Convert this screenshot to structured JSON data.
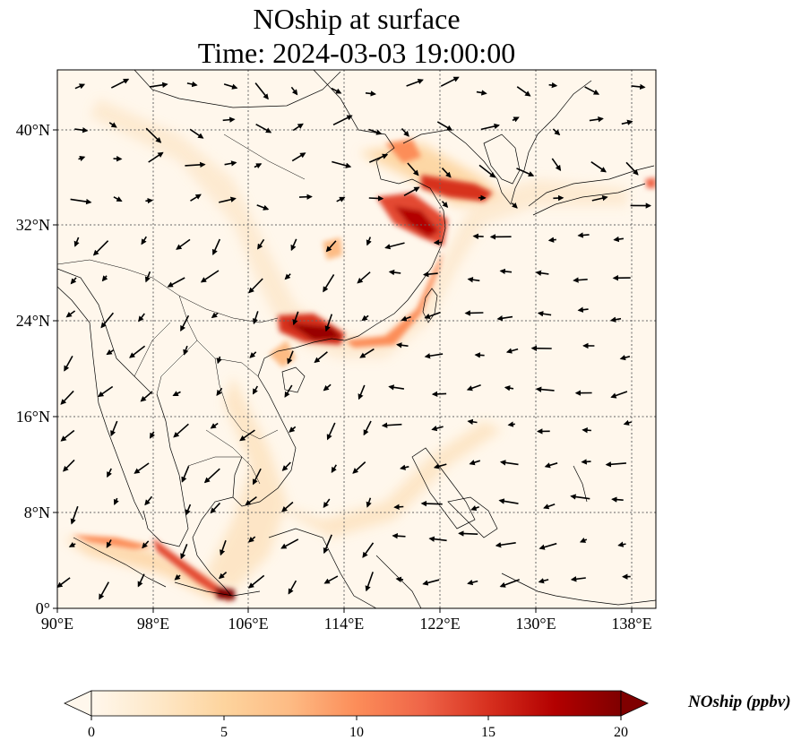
{
  "title": {
    "line1": "NOship at surface",
    "line2": "Time: 2024-03-03 19:00:00"
  },
  "map": {
    "projection": "PlateCarree",
    "lon_range": [
      90,
      140
    ],
    "lat_range": [
      0,
      45
    ],
    "lon_ticks": [
      {
        "value": 90,
        "label": "90°E"
      },
      {
        "value": 98,
        "label": "98°E"
      },
      {
        "value": 106,
        "label": "106°E"
      },
      {
        "value": 114,
        "label": "114°E"
      },
      {
        "value": 122,
        "label": "122°E"
      },
      {
        "value": 130,
        "label": "130°E"
      },
      {
        "value": 138,
        "label": "138°E"
      }
    ],
    "lat_ticks": [
      {
        "value": 0,
        "label": "0°"
      },
      {
        "value": 8,
        "label": "8°N"
      },
      {
        "value": 16,
        "label": "16°N"
      },
      {
        "value": 24,
        "label": "24°N"
      },
      {
        "value": 32,
        "label": "32°N"
      },
      {
        "value": 40,
        "label": "40°N"
      }
    ],
    "gridlines": "dotted",
    "coastlines": true,
    "borders": true,
    "wind_vectors": true
  },
  "colorbar": {
    "label": "NOship (ppbv)",
    "cmap": "OrRd",
    "range": [
      0,
      20
    ],
    "extend": "both",
    "ticks": [
      {
        "value": 0,
        "label": "0"
      },
      {
        "value": 5,
        "label": "5"
      },
      {
        "value": 10,
        "label": "10"
      },
      {
        "value": 15,
        "label": "15"
      },
      {
        "value": 20,
        "label": "20"
      }
    ],
    "colors": [
      "#fff7ec",
      "#fee8c8",
      "#fdd49e",
      "#fdbb84",
      "#fc8d59",
      "#ef6548",
      "#d7301f",
      "#b30000",
      "#7f0000"
    ]
  }
}
